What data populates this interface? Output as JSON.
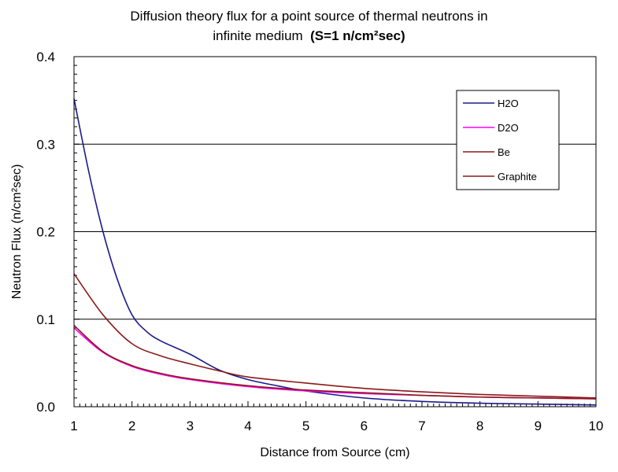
{
  "chart_data": {
    "type": "line",
    "title_line1": "Diffusion theory flux for a point source of thermal neutrons in",
    "title_line2_prefix": "infinite medium",
    "title_line2_bold": "(S=1 n/cm²sec)",
    "xlabel": "Distance from Source (cm)",
    "ylabel": "Neutron Flux (n/cm²sec)",
    "xlim": [
      1,
      10
    ],
    "ylim": [
      0,
      0.4
    ],
    "xticks": [
      "1",
      "2",
      "3",
      "4",
      "5",
      "6",
      "7",
      "8",
      "9",
      "10"
    ],
    "yticks": [
      "0.0",
      "0.1",
      "0.2",
      "0.3",
      "0.4"
    ],
    "grid": "horizontal major gridlines",
    "legend_position": "top-right",
    "series": [
      {
        "name": "H2O",
        "color": "#1a1a8c",
        "x": [
          1,
          1.25,
          1.5,
          1.75,
          2,
          2.25,
          2.5,
          3,
          3.5,
          4,
          4.5,
          5,
          6,
          7,
          8,
          9,
          10
        ],
        "y": [
          0.352,
          0.27,
          0.2,
          0.145,
          0.105,
          0.086,
          0.075,
          0.06,
          0.042,
          0.031,
          0.024,
          0.018,
          0.01,
          0.006,
          0.004,
          0.003,
          0.002
        ]
      },
      {
        "name": "D2O",
        "color": "#ff00ff",
        "x": [
          1,
          1.5,
          2,
          2.5,
          3,
          4,
          5,
          6,
          7,
          8,
          9,
          10
        ],
        "y": [
          0.09,
          0.062,
          0.046,
          0.037,
          0.031,
          0.023,
          0.018,
          0.015,
          0.013,
          0.011,
          0.01,
          0.009
        ]
      },
      {
        "name": "Be",
        "color": "#8b1a1a",
        "x": [
          1,
          1.5,
          2,
          2.5,
          3,
          4,
          5,
          6,
          7,
          8,
          9,
          10
        ],
        "y": [
          0.093,
          0.063,
          0.047,
          0.038,
          0.032,
          0.024,
          0.019,
          0.016,
          0.013,
          0.011,
          0.01,
          0.009
        ]
      },
      {
        "name": "Graphite",
        "color": "#8b1a1a",
        "x": [
          1,
          1.5,
          2,
          2.5,
          3,
          3.5,
          4,
          5,
          6,
          7,
          8,
          9,
          10
        ],
        "y": [
          0.152,
          0.105,
          0.072,
          0.058,
          0.049,
          0.041,
          0.034,
          0.027,
          0.021,
          0.017,
          0.014,
          0.012,
          0.01
        ]
      }
    ]
  }
}
